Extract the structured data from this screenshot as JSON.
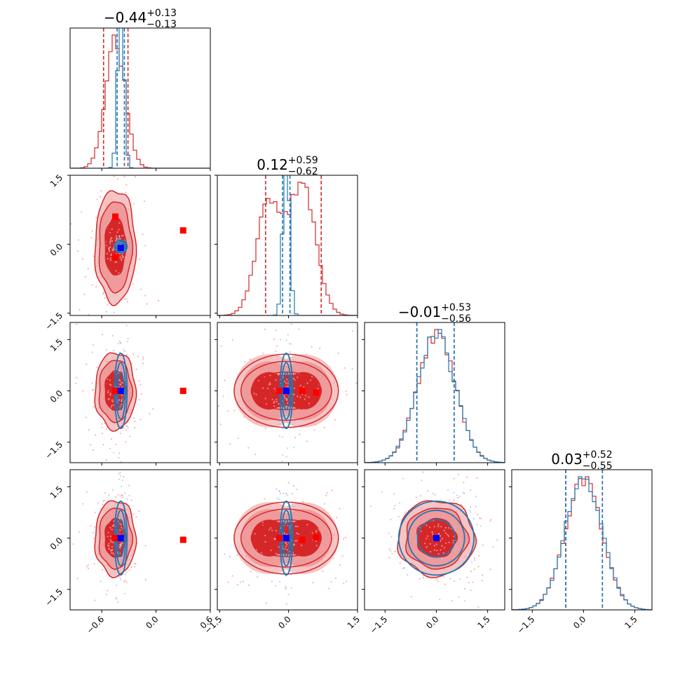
{
  "chart_data": {
    "type": "corner",
    "parameters": [
      "p0",
      "p1",
      "p2",
      "p3"
    ],
    "titles": [
      {
        "median": "−0.44",
        "plus": "+0.13",
        "minus": "−0.13"
      },
      {
        "median": "0.12",
        "plus": "+0.59",
        "minus": "−0.62"
      },
      {
        "median": "−0.01",
        "plus": "+0.53",
        "minus": "−0.56"
      },
      {
        "median": "0.03",
        "plus": "+0.52",
        "minus": "−0.55"
      }
    ],
    "ranges": [
      [
        -0.95,
        0.6
      ],
      [
        -1.55,
        1.5
      ],
      [
        -2.1,
        2.0
      ],
      [
        -2.1,
        2.0
      ]
    ],
    "y_ranges": [
      [
        -1.55,
        1.5
      ],
      [
        -2.1,
        2.0
      ],
      [
        -2.1,
        2.0
      ]
    ],
    "x_ticks": [
      {
        "values": [
          -0.6,
          0.0,
          0.6
        ],
        "labels": [
          "−0.6",
          "0.0",
          "0.6"
        ]
      },
      {
        "values": [
          -1.5,
          0.0,
          1.5
        ],
        "labels": [
          "−1.5",
          "0.0",
          "1.5"
        ]
      },
      {
        "values": [
          -1.5,
          0.0,
          1.5
        ],
        "labels": [
          "−1.5",
          "0.0",
          "1.5"
        ]
      },
      {
        "values": [
          -1.5,
          0.0,
          1.5
        ],
        "labels": [
          "−1.5",
          "0.0",
          "1.5"
        ]
      }
    ],
    "y_ticks": [
      {
        "values": [
          -1.5,
          0.0,
          1.5
        ],
        "labels": [
          "−1.5",
          "0.0",
          "1.5"
        ]
      },
      {
        "values": [
          -1.5,
          0.0,
          1.5
        ],
        "labels": [
          "−1.5",
          "0.0",
          "1.5"
        ]
      },
      {
        "values": [
          -1.5,
          0.0,
          1.5
        ],
        "labels": [
          "−1.5",
          "0.0",
          "1.5"
        ]
      }
    ],
    "series": [
      {
        "name": "red",
        "color": "#d62728",
        "fill_dark": "#d62728",
        "fill_light": "#ef9a9b",
        "means": [
          -0.45,
          -0.05,
          0.0,
          0.0
        ],
        "sds": [
          0.11,
          0.6,
          0.55,
          0.54
        ],
        "hist_shapes": [
          "gauss",
          "bimodal",
          "gauss",
          "gauss"
        ],
        "quantiles": [
          [
            -0.58,
            -0.31
          ],
          [
            -0.5,
            0.71
          ],
          [
            -0.57,
            0.52
          ],
          [
            -0.52,
            0.55
          ]
        ]
      },
      {
        "name": "blue",
        "color": "#1f77b4",
        "means": [
          -0.39,
          -0.05,
          0.0,
          0.0
        ],
        "sds": [
          0.035,
          0.07,
          0.55,
          0.54
        ],
        "hist_shapes": [
          "gauss",
          "gauss",
          "gauss",
          "gauss"
        ],
        "quantiles": [
          [
            -0.43,
            -0.35
          ],
          [
            -0.13,
            0.03
          ],
          [
            -0.57,
            0.52
          ],
          [
            -0.52,
            0.55
          ]
        ]
      }
    ],
    "markers": [
      {
        "name": "red",
        "color": "#ff0000",
        "points": [
          [
            -0.45,
            0.6
          ],
          [
            -0.45,
            -0.25
          ],
          [
            -0.45,
            -0.3
          ],
          [
            0.3,
            0.3
          ],
          [
            -0.45,
            0.0
          ],
          [
            0.3,
            0.0
          ],
          [
            0.3,
            -0.05
          ],
          [
            -0.2,
            0.0
          ],
          [
            0.3,
            -0.05
          ],
          [
            0.6,
            -0.05
          ],
          [
            0.6,
            0.02
          ]
        ]
      },
      {
        "name": "blue",
        "color": "#0000ff",
        "points": [
          [
            -0.39,
            -0.08
          ],
          [
            -0.05,
            0.0
          ],
          [
            0.0,
            0.0
          ]
        ]
      }
    ]
  }
}
